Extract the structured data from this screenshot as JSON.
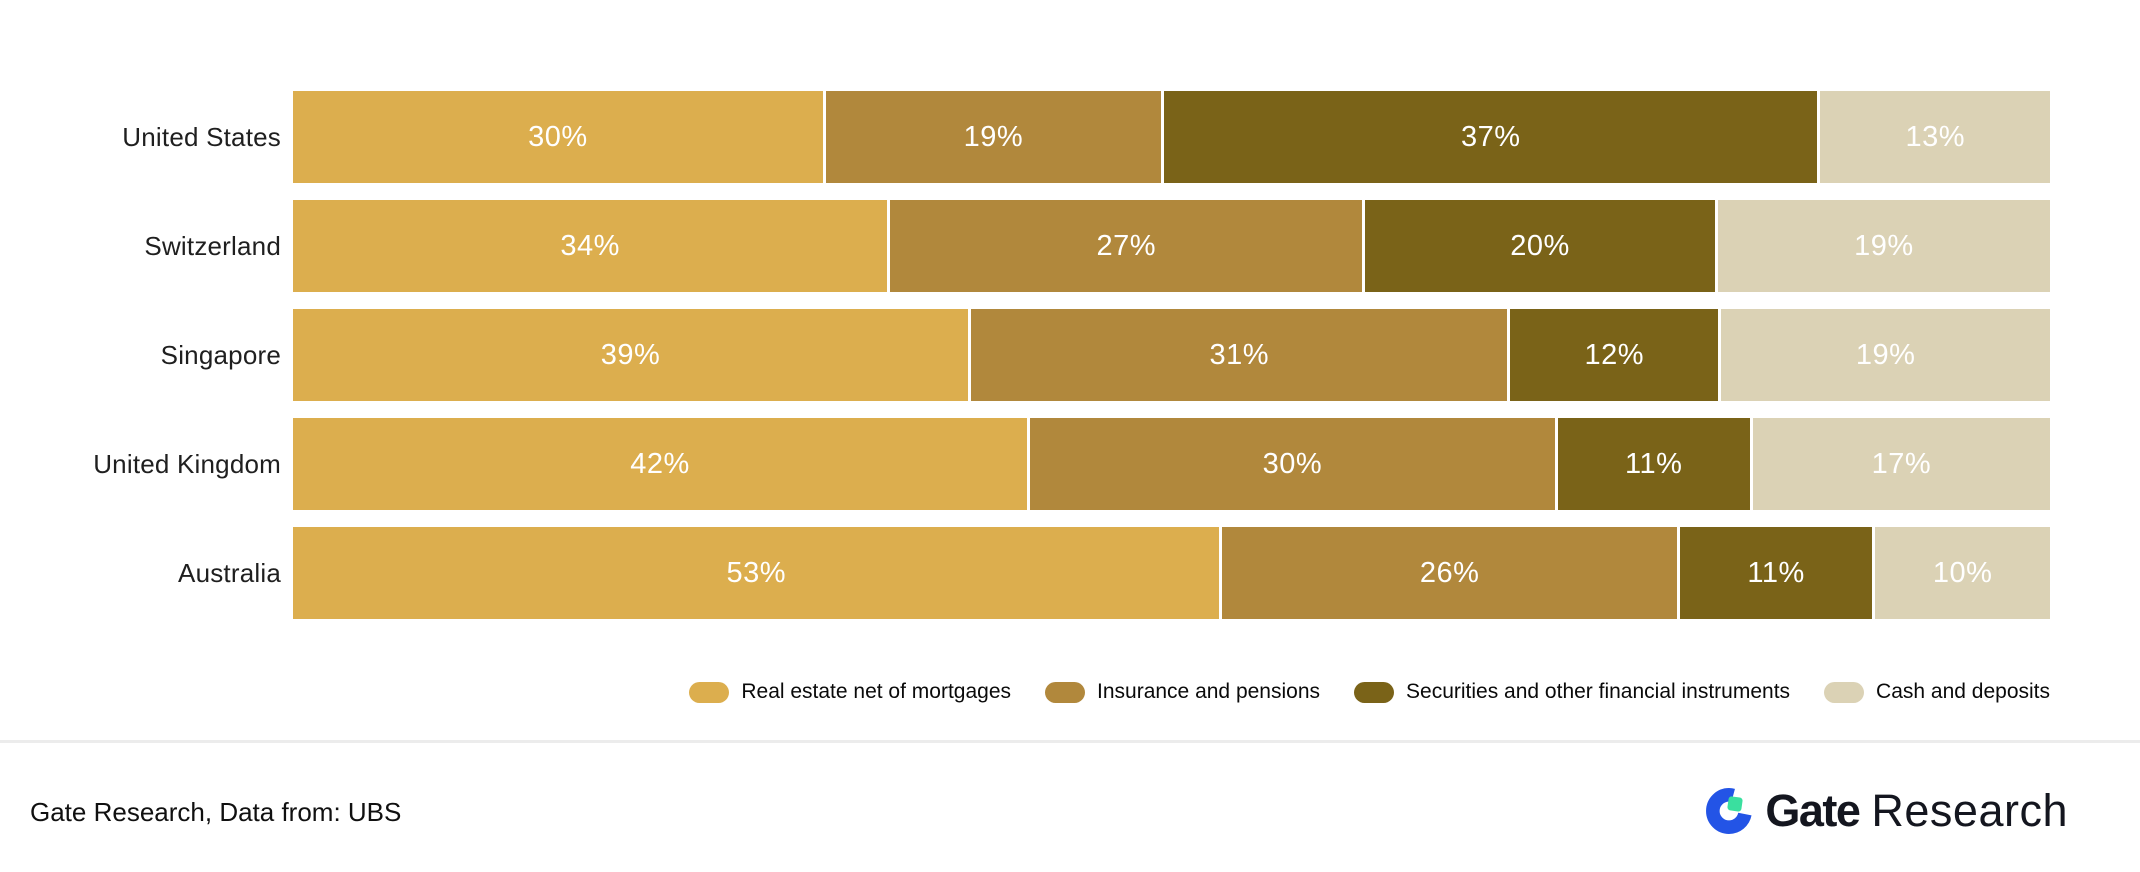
{
  "chart_data": {
    "type": "bar",
    "stacked": true,
    "orientation": "horizontal",
    "grid": false,
    "legend_position": "bottom-right",
    "value_suffix": "%",
    "categories": [
      "United States",
      "Switzerland",
      "Singapore",
      "United Kingdom",
      "Australia"
    ],
    "series": [
      {
        "name": "Real estate net of mortgages",
        "color": "#DCAE4E",
        "values": [
          30,
          34,
          39,
          42,
          53
        ]
      },
      {
        "name": "Insurance and pensions",
        "color": "#B1883C",
        "values": [
          19,
          27,
          31,
          30,
          26
        ]
      },
      {
        "name": "Securities and other financial instruments",
        "color": "#7A6318",
        "values": [
          37,
          20,
          12,
          11,
          11
        ]
      },
      {
        "name": "Cash and deposits",
        "color": "#DBD2B5",
        "values": [
          13,
          19,
          19,
          17,
          10
        ]
      }
    ]
  },
  "footer": {
    "source_text": "Gate Research, Data from: UBS",
    "logo": {
      "brand": "Gate",
      "suffix": "Research",
      "blue": "#2354E6",
      "green": "#3ADF9F",
      "dark": "#14161F"
    }
  }
}
